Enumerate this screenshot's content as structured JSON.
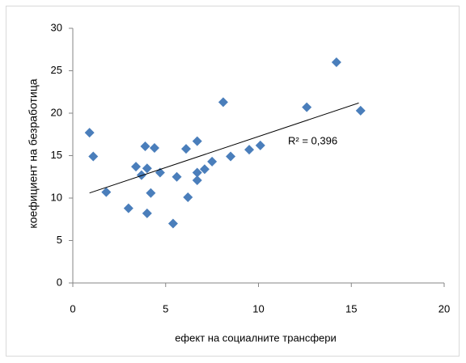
{
  "chart_data": {
    "type": "scatter",
    "x_label": "ефект на социалните трансфери",
    "y_label": "коефициент на безработица",
    "annotation": "R² = 0,396",
    "x": [
      0.9,
      1.1,
      1.8,
      3.0,
      3.4,
      3.7,
      3.9,
      4.0,
      4.0,
      4.2,
      4.4,
      4.7,
      5.4,
      5.6,
      6.1,
      6.2,
      6.7,
      6.7,
      6.7,
      7.1,
      7.5,
      8.1,
      8.5,
      9.5,
      10.1,
      12.6,
      14.2,
      15.5
    ],
    "values": [
      17.7,
      14.9,
      10.7,
      8.8,
      13.7,
      12.7,
      16.1,
      13.5,
      8.2,
      10.6,
      15.9,
      13.0,
      7.0,
      12.5,
      15.8,
      10.1,
      16.7,
      13.0,
      12.1,
      13.4,
      14.3,
      21.3,
      14.9,
      15.7,
      16.2,
      20.7,
      26.0,
      20.3
    ],
    "color": "#4a7ebb",
    "trendline": {
      "x": [
        0.9,
        15.4
      ],
      "values": [
        10.6,
        21.2
      ],
      "color": "#000000"
    },
    "xlim": [
      0,
      20
    ],
    "xticks": [
      0,
      5,
      10,
      15,
      20
    ],
    "ylim": [
      0,
      30
    ],
    "yticks": [
      0,
      5,
      10,
      15,
      20,
      25,
      30
    ],
    "grid": false
  }
}
